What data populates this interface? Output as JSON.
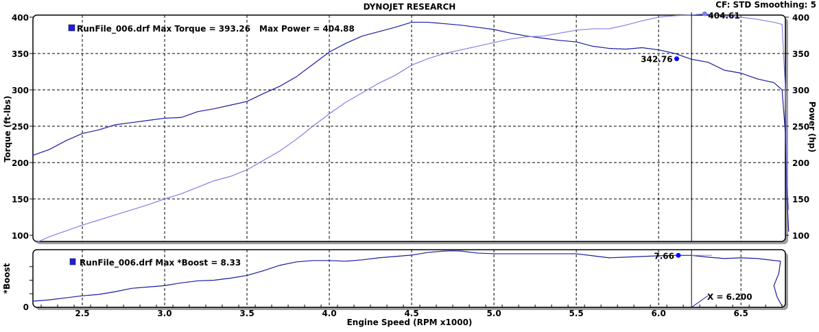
{
  "header": {
    "title": "DYNOJET RESEARCH",
    "cf_info": "CF: STD  Smoothing: 5"
  },
  "chart_data": [
    {
      "type": "line",
      "title": "DYNOJET RESEARCH",
      "xlabel": "Engine Speed (RPM x1000)",
      "ylabel": "Torque (ft-lbs)",
      "y2label": "Power (hp)",
      "xlim": [
        2.2,
        6.77
      ],
      "ylim": [
        100,
        400
      ],
      "y2lim": [
        100,
        400
      ],
      "yticks": [
        "100",
        "150",
        "200",
        "250",
        "300",
        "350",
        "400"
      ],
      "y2ticks": [
        "100",
        "150",
        "200",
        "250",
        "300",
        "350",
        "400"
      ],
      "grid": true,
      "legend": "RunFile_006.drf Max Torque = 393.26",
      "legend2": "Max Power = 404.88",
      "legend_position": "top-left",
      "colors": {
        "torque": "#1a1aa0",
        "power": "#8080e0",
        "marker_torque": "#0000ff",
        "marker_power": "#8080f0"
      },
      "series": [
        {
          "name": "Torque",
          "x": [
            2.2,
            2.3,
            2.4,
            2.5,
            2.6,
            2.7,
            2.8,
            2.9,
            3.0,
            3.1,
            3.2,
            3.3,
            3.4,
            3.5,
            3.6,
            3.7,
            3.8,
            3.9,
            4.0,
            4.1,
            4.2,
            4.3,
            4.4,
            4.5,
            4.6,
            4.7,
            4.8,
            4.9,
            5.0,
            5.1,
            5.2,
            5.3,
            5.4,
            5.5,
            5.6,
            5.7,
            5.8,
            5.9,
            6.0,
            6.1,
            6.2,
            6.3,
            6.4,
            6.5,
            6.6,
            6.7,
            6.75,
            6.77,
            6.78,
            6.79
          ],
          "y": [
            210,
            218,
            230,
            240,
            245,
            252,
            255,
            258,
            261,
            262,
            270,
            274,
            279,
            284,
            295,
            305,
            318,
            335,
            352,
            364,
            374,
            380,
            386,
            393,
            393,
            391,
            389,
            386,
            383,
            378,
            374,
            371,
            368,
            366,
            360,
            357,
            356,
            358,
            355,
            350,
            342,
            338,
            327,
            323,
            315,
            310,
            300,
            240,
            150,
            105
          ]
        },
        {
          "name": "Power",
          "x": [
            2.22,
            2.3,
            2.4,
            2.5,
            2.6,
            2.7,
            2.8,
            2.9,
            3.0,
            3.1,
            3.2,
            3.3,
            3.4,
            3.5,
            3.6,
            3.7,
            3.8,
            3.9,
            4.0,
            4.1,
            4.2,
            4.3,
            4.4,
            4.5,
            4.6,
            4.7,
            4.8,
            4.9,
            5.0,
            5.1,
            5.2,
            5.3,
            5.4,
            5.5,
            5.6,
            5.7,
            5.8,
            5.9,
            6.0,
            6.1,
            6.2,
            6.28,
            6.4,
            6.5,
            6.6,
            6.7,
            6.75,
            6.77,
            6.78,
            6.79
          ],
          "y": [
            90,
            98,
            106,
            114,
            121,
            128,
            135,
            142,
            150,
            157,
            166,
            175,
            181,
            190,
            203,
            216,
            232,
            250,
            267,
            283,
            296,
            309,
            320,
            334,
            343,
            350,
            355,
            360,
            365,
            370,
            373,
            374,
            378,
            382,
            384,
            384,
            389,
            395,
            400,
            402,
            403,
            404.61,
            401,
            400,
            397,
            393,
            390,
            300,
            170,
            135
          ]
        }
      ],
      "annotations": [
        {
          "label": "404.61",
          "x": 6.28,
          "y": 404.61,
          "series": "Power"
        },
        {
          "label": "342.76",
          "x": 6.11,
          "y": 342.76,
          "series": "Torque"
        }
      ],
      "cursor_x": 6.2
    },
    {
      "type": "line",
      "xlabel": "Engine Speed (RPM x1000)",
      "ylabel": "*Boost",
      "xlim": [
        2.2,
        6.77
      ],
      "ylim": [
        0,
        8.5
      ],
      "yticks": [
        "0"
      ],
      "xticks": [
        "2.5",
        "3.0",
        "3.5",
        "4.0",
        "4.5",
        "5.0",
        "5.5",
        "6.0",
        "6.5"
      ],
      "grid": true,
      "legend": "RunFile_006.drf Max *Boost = 8.33",
      "legend_position": "top-left",
      "series": [
        {
          "name": "*Boost",
          "x": [
            2.2,
            2.3,
            2.4,
            2.5,
            2.6,
            2.7,
            2.8,
            2.9,
            3.0,
            3.1,
            3.2,
            3.3,
            3.4,
            3.5,
            3.6,
            3.7,
            3.8,
            3.9,
            4.0,
            4.1,
            4.2,
            4.3,
            4.4,
            4.5,
            4.6,
            4.7,
            4.75,
            4.8,
            4.9,
            5.0,
            5.2,
            5.4,
            5.5,
            5.6,
            5.7,
            5.8,
            5.9,
            6.0,
            6.1,
            6.2,
            6.3,
            6.4,
            6.5,
            6.6,
            6.74,
            6.73,
            6.7,
            6.72,
            6.75
          ],
          "y": [
            0.9,
            1.1,
            1.4,
            1.7,
            1.9,
            2.3,
            2.8,
            3.0,
            3.2,
            3.6,
            3.9,
            4.0,
            4.3,
            4.7,
            5.4,
            6.2,
            6.7,
            6.9,
            6.9,
            6.8,
            7.0,
            7.3,
            7.5,
            7.7,
            8.1,
            8.3,
            8.33,
            8.3,
            8.0,
            7.9,
            7.9,
            7.9,
            7.9,
            7.6,
            7.3,
            7.4,
            7.5,
            7.6,
            7.66,
            7.66,
            7.4,
            7.2,
            7.3,
            7.2,
            6.8,
            5.0,
            3.2,
            1.5,
            0.2
          ]
        }
      ],
      "annotations": [
        {
          "label": "7.66",
          "x": 6.12,
          "y": 7.66
        }
      ],
      "cursor_label": "X = 6.200",
      "cursor_x": 6.2
    }
  ]
}
